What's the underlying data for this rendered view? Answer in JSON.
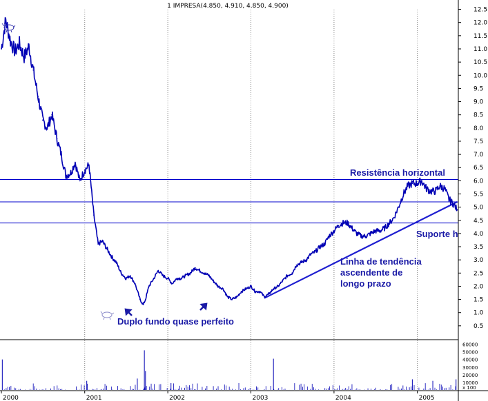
{
  "colors": {
    "price_line": "#0000b4",
    "horizontal_lines": "#0000cc",
    "trendline": "#1f1fd0",
    "annotation_text": "#1a1aa6",
    "volume_bars": "#0000b4",
    "grid": "#888888",
    "axis": "#000000"
  },
  "chart_data": {
    "type": "line",
    "title": "1 IMPRESA(4.850, 4.910, 4.850, 4.900)",
    "xlabel": "",
    "ylabel": "",
    "ylim": [
      0.0,
      12.75
    ],
    "xlim": [
      "2000-01-01",
      "2005-06-30"
    ],
    "grid": "vertical dotted gridlines at each year",
    "y_axis_position": "right",
    "y_ticks": [
      "12.5",
      "12.0",
      "11.5",
      "11.0",
      "10.5",
      "10.0",
      "9.5",
      "9.0",
      "8.5",
      "8.0",
      "7.5",
      "7.0",
      "6.5",
      "6.0",
      "5.5",
      "5.0",
      "4.5",
      "4.0",
      "3.5",
      "3.0",
      "2.5",
      "2.0",
      "1.5",
      "1.0",
      "0.5"
    ],
    "x_ticks": [
      "2000",
      "2001",
      "2002",
      "2003",
      "2004",
      "2005"
    ],
    "x_tick_dates": [
      "2000-01-01",
      "2001-01-01",
      "2002-01-01",
      "2003-01-01",
      "2004-01-01",
      "2005-01-01"
    ],
    "series": [
      {
        "x": [
          "2000-01-01",
          "2000-01-20",
          "2000-02-10",
          "2000-03-01",
          "2000-03-20",
          "2000-04-10",
          "2000-05-01",
          "2000-05-20",
          "2000-06-10",
          "2000-07-01",
          "2000-07-20",
          "2000-08-10",
          "2000-09-01",
          "2000-09-20",
          "2000-10-10",
          "2000-11-01",
          "2000-11-20",
          "2000-12-10",
          "2001-01-01",
          "2001-01-20",
          "2001-02-10",
          "2001-03-01",
          "2001-03-20",
          "2001-04-10",
          "2001-05-01",
          "2001-05-20",
          "2001-06-10",
          "2001-07-01",
          "2001-07-20",
          "2001-08-10",
          "2001-09-01",
          "2001-09-15",
          "2001-09-25",
          "2001-10-10",
          "2001-11-01",
          "2001-11-20",
          "2001-12-10",
          "2002-01-01",
          "2002-01-20",
          "2002-02-10",
          "2002-03-01",
          "2002-03-20",
          "2002-04-10",
          "2002-05-01",
          "2002-05-20",
          "2002-06-10",
          "2002-07-01",
          "2002-07-20",
          "2002-08-10",
          "2002-09-01",
          "2002-09-20",
          "2002-10-10",
          "2002-11-01",
          "2002-11-20",
          "2002-12-10",
          "2003-01-01",
          "2003-01-20",
          "2003-02-10",
          "2003-03-01",
          "2003-03-20",
          "2003-04-10",
          "2003-05-01",
          "2003-05-20",
          "2003-06-10",
          "2003-07-01",
          "2003-07-20",
          "2003-08-10",
          "2003-09-01",
          "2003-09-20",
          "2003-10-10",
          "2003-11-01",
          "2003-11-20",
          "2003-12-10",
          "2004-01-01",
          "2004-01-20",
          "2004-02-10",
          "2004-03-01",
          "2004-03-20",
          "2004-04-10",
          "2004-05-01",
          "2004-05-20",
          "2004-06-10",
          "2004-07-01",
          "2004-07-20",
          "2004-08-10",
          "2004-09-01",
          "2004-09-20",
          "2004-10-10",
          "2004-11-01",
          "2004-11-20",
          "2004-12-10",
          "2005-01-01",
          "2005-01-20",
          "2005-02-10",
          "2005-03-01",
          "2005-03-20",
          "2005-04-10",
          "2005-05-01",
          "2005-05-20",
          "2005-06-10",
          "2005-06-25"
        ],
        "values": [
          11.0,
          12.1,
          11.3,
          10.9,
          11.2,
          10.7,
          11.1,
          10.2,
          9.2,
          8.3,
          8.0,
          8.5,
          7.6,
          7.0,
          6.2,
          6.3,
          6.7,
          6.0,
          6.4,
          6.6,
          4.7,
          3.6,
          3.7,
          3.4,
          3.1,
          2.9,
          2.5,
          2.3,
          2.4,
          2.1,
          1.5,
          1.3,
          1.5,
          2.0,
          2.3,
          2.6,
          2.4,
          2.3,
          2.1,
          2.3,
          2.3,
          2.4,
          2.5,
          2.7,
          2.6,
          2.5,
          2.4,
          2.2,
          2.0,
          1.9,
          1.6,
          1.5,
          1.6,
          1.8,
          1.9,
          2.0,
          1.8,
          1.8,
          1.6,
          1.7,
          1.9,
          2.0,
          2.2,
          2.4,
          2.5,
          2.8,
          2.9,
          3.0,
          3.2,
          3.3,
          3.5,
          3.6,
          3.9,
          4.1,
          4.3,
          4.4,
          4.4,
          4.2,
          4.0,
          3.9,
          3.9,
          4.0,
          4.1,
          4.1,
          4.2,
          4.4,
          4.6,
          5.0,
          5.5,
          5.8,
          5.9,
          5.9,
          6.0,
          5.7,
          5.6,
          5.6,
          5.8,
          5.7,
          5.3,
          5.1,
          4.9
        ]
      }
    ],
    "volume": {
      "y_ticks": [
        "60000",
        "50000",
        "40000",
        "30000",
        "20000",
        "10000",
        "x 100"
      ],
      "ylim": [
        0,
        65000
      ]
    },
    "horizontal_lines": [
      {
        "value": 6.05,
        "label": "Resistência horizontal"
      },
      {
        "value": 5.2,
        "label": ""
      },
      {
        "value": 4.4,
        "label": "Suporte h"
      }
    ],
    "trendline": {
      "start": {
        "x": "2003-03-01",
        "y": 1.55
      },
      "end": {
        "x": "2005-06-25",
        "y": 5.2
      },
      "label_lines": [
        "Linha de tendência",
        "ascendente de",
        "longo prazo"
      ]
    },
    "annotations": {
      "double_bottom": "Duplo fundo quase perfeito"
    }
  }
}
